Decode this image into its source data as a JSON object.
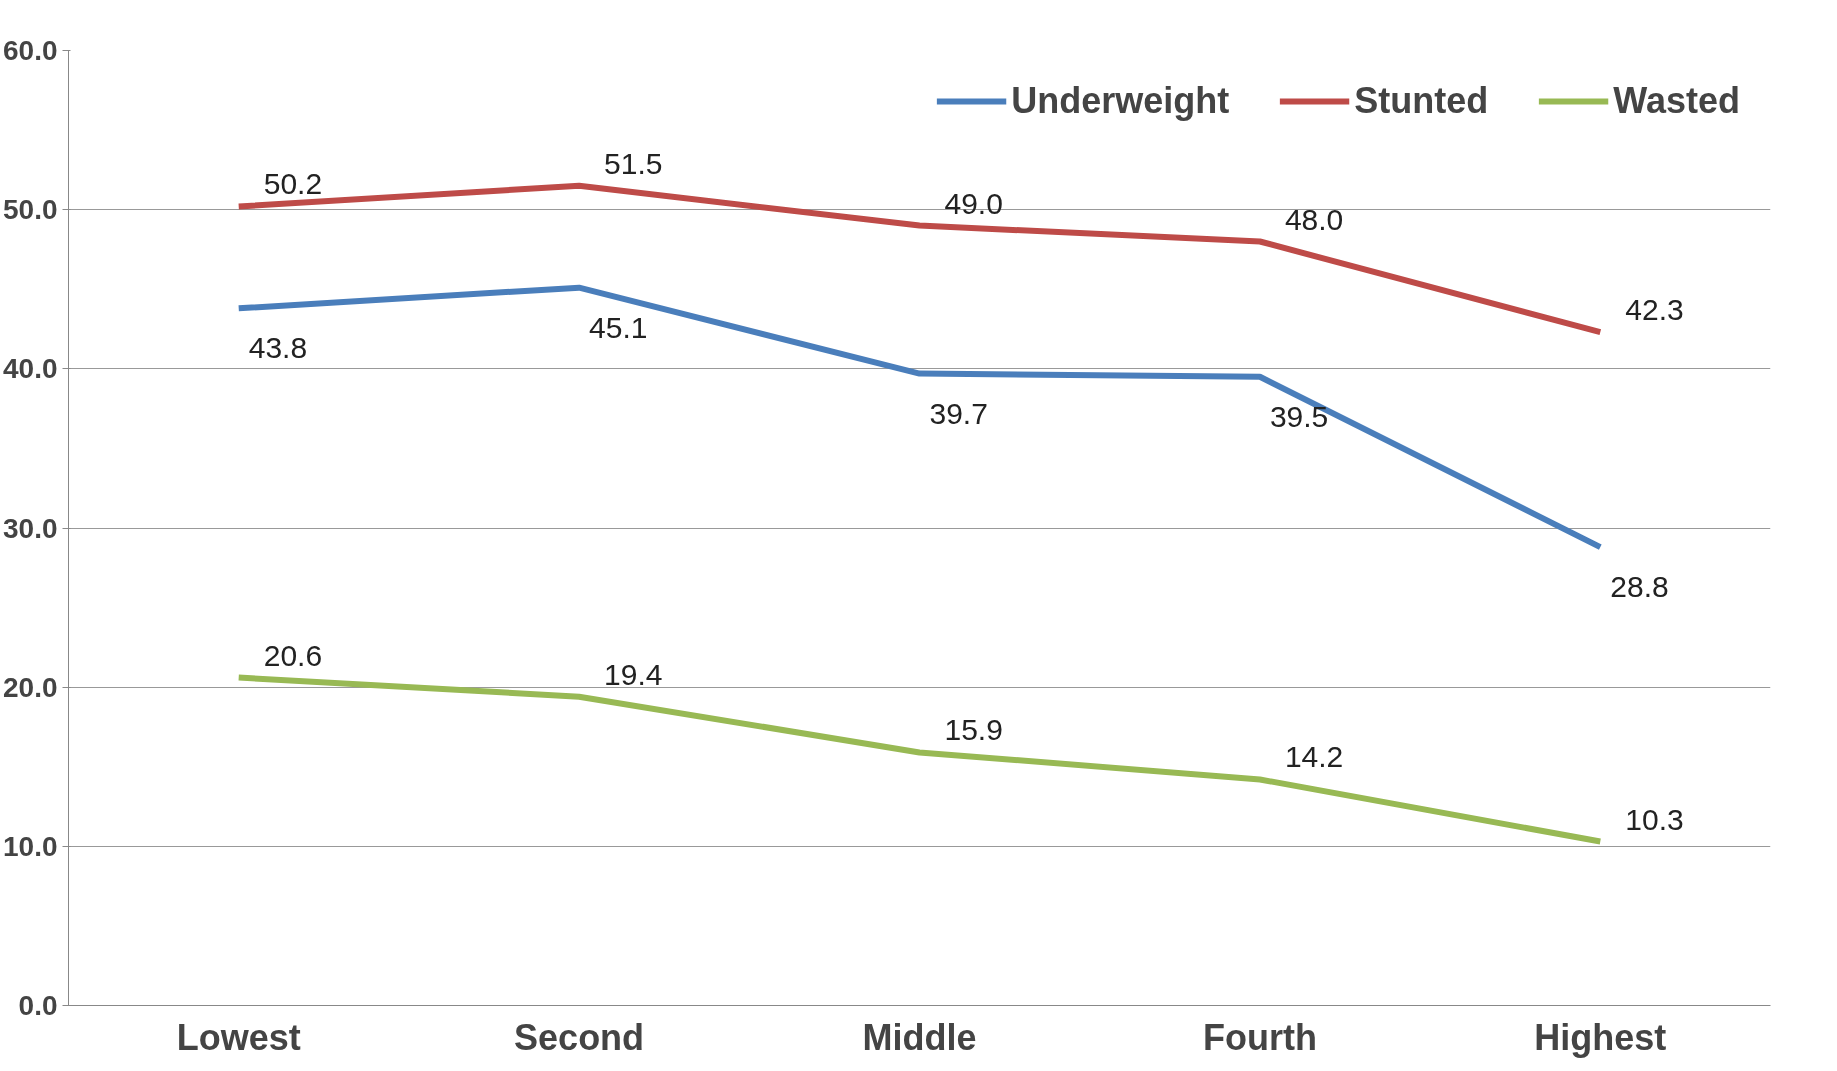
{
  "chart_data": {
    "type": "line",
    "categories": [
      "Lowest",
      "Second",
      "Middle",
      "Fourth",
      "Highest"
    ],
    "series": [
      {
        "name": "Underweight",
        "color": "#4a7ebb",
        "values": [
          43.8,
          45.1,
          39.7,
          39.5,
          28.8
        ],
        "value_labels": [
          "43.8",
          "45.1",
          "39.7",
          "39.5",
          "28.8"
        ]
      },
      {
        "name": "Stunted",
        "color": "#be4b48",
        "values": [
          50.2,
          51.5,
          49.0,
          48.0,
          42.3
        ],
        "value_labels": [
          "50.2",
          "51.5",
          "49.0",
          "48.0",
          "42.3"
        ]
      },
      {
        "name": "Wasted",
        "color": "#98b954",
        "values": [
          20.6,
          19.4,
          15.9,
          14.2,
          10.3
        ],
        "value_labels": [
          "20.6",
          "19.4",
          "15.9",
          "14.2",
          "10.3"
        ]
      }
    ],
    "ylim": [
      0,
      60
    ],
    "yticks": [
      {
        "value": 0,
        "label": "0.0"
      },
      {
        "value": 10,
        "label": "10.0"
      },
      {
        "value": 20,
        "label": "20.0"
      },
      {
        "value": 30,
        "label": "30.0"
      },
      {
        "value": 40,
        "label": "40.0"
      },
      {
        "value": 50,
        "label": "50.0"
      },
      {
        "value": 60,
        "label": "60.0"
      }
    ],
    "grid": "y",
    "legend": "top right",
    "marker": "none",
    "line_style": "solid"
  }
}
